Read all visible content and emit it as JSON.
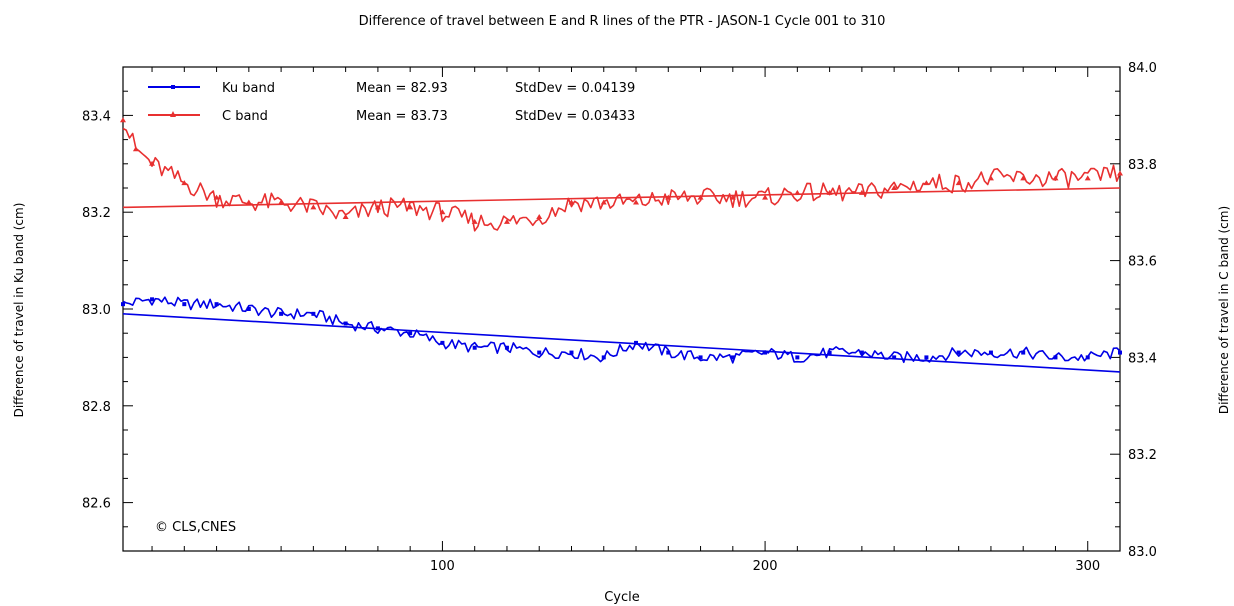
{
  "chart_data": {
    "type": "line",
    "title": "Difference of travel between E and R lines of the PTR - JASON-1 Cycle 001 to 310",
    "xlabel": "Cycle",
    "ylabel_left": "Difference of travel in Ku band (cm)",
    "ylabel_right": "Difference of travel in C band (cm)",
    "xlim": [
      1,
      310
    ],
    "ylim_left": [
      82.5,
      83.5
    ],
    "ylim_right": [
      83.0,
      84.0
    ],
    "x_ticks": [
      100,
      200,
      300
    ],
    "x_tick_labels": [
      "100",
      "200",
      "300"
    ],
    "y_left_ticks": [
      82.6,
      82.8,
      83.0,
      83.2,
      83.4
    ],
    "y_left_tick_labels": [
      "82.6",
      "82.8",
      "83.0",
      "83.2",
      "83.4"
    ],
    "y_right_ticks": [
      83.0,
      83.2,
      83.4,
      83.6,
      83.8,
      84.0
    ],
    "y_right_tick_labels": [
      "83.0",
      "83.2",
      "83.4",
      "83.6",
      "83.8",
      "84.0"
    ],
    "copyright": "© CLS,CNES",
    "legend_position": "top-left",
    "series": [
      {
        "name": "Ku band",
        "axis": "left",
        "color": "#0000e6",
        "marker": "square",
        "mean_label": "Mean = 82.93",
        "std_label": "StdDev = 0.04139",
        "x": [
          1,
          10,
          20,
          30,
          40,
          50,
          60,
          70,
          80,
          90,
          100,
          110,
          120,
          130,
          140,
          150,
          160,
          170,
          180,
          190,
          200,
          210,
          220,
          230,
          240,
          250,
          260,
          270,
          280,
          290,
          300,
          310
        ],
        "values": [
          83.01,
          83.02,
          83.01,
          83.01,
          83.0,
          82.99,
          82.99,
          82.97,
          82.96,
          82.95,
          82.93,
          82.92,
          82.92,
          82.91,
          82.91,
          82.9,
          82.93,
          82.91,
          82.9,
          82.9,
          82.91,
          82.9,
          82.91,
          82.91,
          82.9,
          82.9,
          82.91,
          82.91,
          82.91,
          82.9,
          82.9,
          82.91
        ],
        "trend": [
          [
            1,
            82.99
          ],
          [
            310,
            82.87
          ]
        ]
      },
      {
        "name": "C band",
        "axis": "right",
        "color": "#e83030",
        "marker": "triangle",
        "mean_label": "Mean = 83.73",
        "std_label": "StdDev = 0.03433",
        "x": [
          1,
          5,
          10,
          20,
          30,
          40,
          50,
          60,
          70,
          80,
          90,
          100,
          110,
          120,
          130,
          140,
          150,
          160,
          170,
          180,
          190,
          200,
          210,
          220,
          230,
          240,
          250,
          260,
          270,
          280,
          290,
          300,
          310
        ],
        "values": [
          83.89,
          83.83,
          83.8,
          83.76,
          83.73,
          83.72,
          83.72,
          83.71,
          83.69,
          83.71,
          83.71,
          83.7,
          83.68,
          83.68,
          83.69,
          83.72,
          83.72,
          83.72,
          83.73,
          83.73,
          83.73,
          83.73,
          83.74,
          83.74,
          83.74,
          83.75,
          83.76,
          83.76,
          83.77,
          83.77,
          83.77,
          83.77,
          83.78
        ],
        "trend": [
          [
            1,
            83.71
          ],
          [
            310,
            83.75
          ]
        ]
      }
    ]
  }
}
